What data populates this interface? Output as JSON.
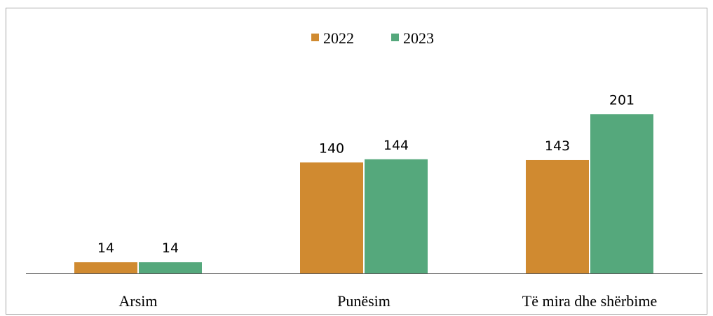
{
  "chart_data": {
    "type": "bar",
    "categories": [
      "Arsim",
      "Punësim",
      "Të mira dhe shërbime"
    ],
    "series": [
      {
        "name": "2022",
        "color": "#D08A30",
        "values": [
          14,
          140,
          143
        ]
      },
      {
        "name": "2023",
        "color": "#55A87C",
        "values": [
          14,
          144,
          201
        ]
      }
    ],
    "ylim": [
      0,
      270
    ],
    "grid": false,
    "legend": "top-center",
    "axis_color": "#595959"
  }
}
